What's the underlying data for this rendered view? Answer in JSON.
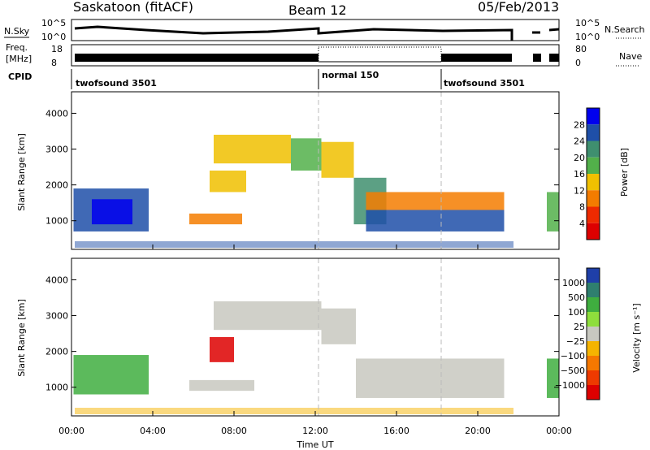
{
  "header": {
    "station": "Saskatoon (fitACF)",
    "beam": "Beam 12",
    "date": "05/Feb/2013"
  },
  "panels": {
    "nsky": {
      "label": "N.Sky",
      "ticks": [
        "10^5",
        "10^0"
      ],
      "right_ticks": [
        "10^5",
        "10^0"
      ],
      "right_label": "N.Search"
    },
    "freq": {
      "label_top": "Freq.",
      "label_unit": "[MHz]",
      "ticks": [
        "18",
        "8"
      ],
      "right_ticks": [
        "80",
        "0"
      ],
      "right_label": "Nave"
    },
    "cpid": {
      "label": "CPID",
      "segments": [
        "twofsound 3501",
        "normal 150",
        "twofsound 3501"
      ]
    }
  },
  "chart_data": [
    {
      "type": "heatmap",
      "name": "power",
      "ylabel": "Slant Range [km]",
      "ylim": [
        200,
        4600
      ],
      "yticks": [
        "4000",
        "3000",
        "2000",
        "1000"
      ],
      "colorbar": {
        "label": "Power [dB]",
        "ticks": [
          "28",
          "24",
          "20",
          "16",
          "12",
          "8",
          "4"
        ],
        "colors": [
          "#0000ee",
          "#1f4fa8",
          "#3f8f6f",
          "#52b04a",
          "#f0c000",
          "#f47c00",
          "#ee2a00",
          "#dd0000"
        ]
      },
      "regions": [
        {
          "t": [
            0.1,
            3.8
          ],
          "r": [
            700,
            1900
          ],
          "v": 24
        },
        {
          "t": [
            1.0,
            3.0
          ],
          "r": [
            900,
            1600
          ],
          "v": 28
        },
        {
          "t": [
            5.8,
            8.4
          ],
          "r": [
            900,
            1200
          ],
          "v": 8
        },
        {
          "t": [
            6.8,
            8.6
          ],
          "r": [
            1800,
            2400
          ],
          "v": 12
        },
        {
          "t": [
            7.0,
            10.8
          ],
          "r": [
            2600,
            3400
          ],
          "v": 14
        },
        {
          "t": [
            10.8,
            12.3
          ],
          "r": [
            2400,
            3300
          ],
          "v": 16
        },
        {
          "t": [
            12.3,
            13.9
          ],
          "r": [
            2200,
            3200
          ],
          "v": 14
        },
        {
          "t": [
            13.9,
            15.5
          ],
          "r": [
            900,
            2200
          ],
          "v": 20
        },
        {
          "t": [
            14.5,
            21.3
          ],
          "r": [
            700,
            1300
          ],
          "v": 26
        },
        {
          "t": [
            14.5,
            21.3
          ],
          "r": [
            1300,
            1800
          ],
          "v": 10
        },
        {
          "t": [
            23.4,
            24.0
          ],
          "r": [
            700,
            1800
          ],
          "v": 16
        }
      ]
    },
    {
      "type": "heatmap",
      "name": "velocity",
      "ylabel": "Slant Range [km]",
      "xlabel": "Time UT",
      "ylim": [
        200,
        4600
      ],
      "yticks": [
        "4000",
        "3000",
        "2000",
        "1000"
      ],
      "xticks": [
        "00:00",
        "04:00",
        "08:00",
        "12:00",
        "16:00",
        "20:00",
        "00:00"
      ],
      "xlim_hours": [
        0,
        24
      ],
      "colorbar": {
        "label": "Velocity [m s⁻¹]",
        "ticks": [
          "1000",
          "500",
          "100",
          "25",
          "−25",
          "−100",
          "−500",
          "−1000"
        ],
        "colors": [
          "#1f3fa8",
          "#2f7f6f",
          "#3fae3f",
          "#8ede3c",
          "#c8c8c0",
          "#f5b400",
          "#f57800",
          "#ee3a00",
          "#dd0000"
        ]
      },
      "regions": [
        {
          "t": [
            0.1,
            3.8
          ],
          "r": [
            800,
            1900
          ],
          "v": 100
        },
        {
          "t": [
            6.8,
            8.0
          ],
          "r": [
            1700,
            2400
          ],
          "v": -500
        },
        {
          "t": [
            5.8,
            9.0
          ],
          "r": [
            900,
            1200
          ],
          "v": 0
        },
        {
          "t": [
            7.0,
            12.3
          ],
          "r": [
            2600,
            3400
          ],
          "v": 0
        },
        {
          "t": [
            12.3,
            14.0
          ],
          "r": [
            2200,
            3200
          ],
          "v": 0
        },
        {
          "t": [
            14.0,
            21.3
          ],
          "r": [
            700,
            1800
          ],
          "v": 0
        },
        {
          "t": [
            23.4,
            24.0
          ],
          "r": [
            700,
            1800
          ],
          "v": 100
        }
      ]
    }
  ]
}
